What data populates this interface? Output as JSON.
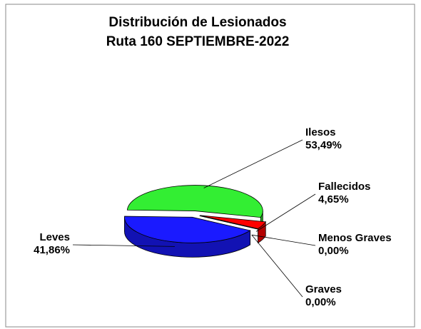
{
  "chart_data": {
    "type": "pie3d",
    "title": [
      "Distribución de Lesionados",
      "Ruta 160 SEPTIEMBRE-2022"
    ],
    "categories": [
      "Ilesos",
      "Fallecidos",
      "Menos Graves",
      "Graves",
      "Leves"
    ],
    "values": [
      53.49,
      4.65,
      0,
      0,
      41.86
    ],
    "value_labels": [
      "53,49%",
      "4,65%",
      "0,00%",
      "0,00%",
      "41,86%"
    ],
    "colors": [
      "#33ee33",
      "#ff0000",
      "#ffff66",
      "#e8c040",
      "#1a1aff"
    ]
  }
}
